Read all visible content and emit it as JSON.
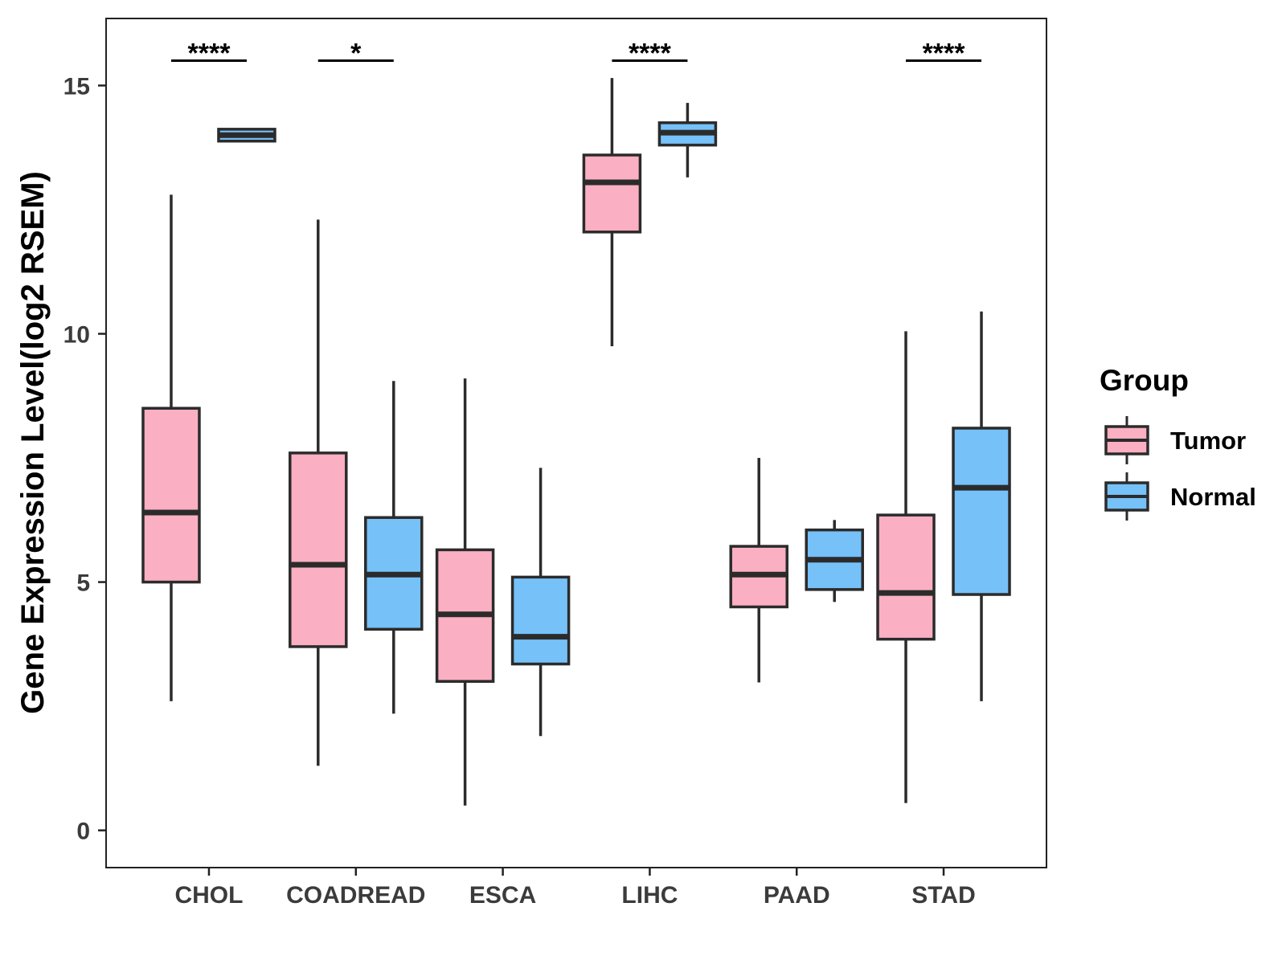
{
  "chart_data": {
    "type": "boxplot",
    "title": "",
    "xlabel": "",
    "ylabel": "Gene Expression Level(log2 RSEM)",
    "ylim": [
      -0.75,
      16.35
    ],
    "yticks": [
      0,
      5,
      10,
      15
    ],
    "ytick_labels": [
      "0",
      "5",
      "10",
      "15"
    ],
    "categories": [
      "CHOL",
      "COADREAD",
      "ESCA",
      "LIHC",
      "PAAD",
      "STAD"
    ],
    "legend": {
      "title": "Group",
      "position": "right",
      "entries": [
        {
          "name": "Tumor",
          "color": "#fbafc2"
        },
        {
          "name": "Normal",
          "color": "#76c1f8"
        }
      ]
    },
    "series": [
      {
        "name": "Tumor",
        "color": "#fbafc2",
        "boxes": [
          {
            "category": "CHOL",
            "whisker_low": 2.6,
            "q1": 5.0,
            "median": 6.4,
            "q3": 8.5,
            "whisker_high": 12.8
          },
          {
            "category": "COADREAD",
            "whisker_low": 1.3,
            "q1": 3.7,
            "median": 5.35,
            "q3": 7.6,
            "whisker_high": 12.3
          },
          {
            "category": "ESCA",
            "whisker_low": 0.5,
            "q1": 3.0,
            "median": 4.35,
            "q3": 5.65,
            "whisker_high": 9.1
          },
          {
            "category": "LIHC",
            "whisker_low": 9.75,
            "q1": 12.05,
            "median": 13.05,
            "q3": 13.6,
            "whisker_high": 15.15
          },
          {
            "category": "PAAD",
            "whisker_low": 2.98,
            "q1": 4.5,
            "median": 5.15,
            "q3": 5.72,
            "whisker_high": 7.5
          },
          {
            "category": "STAD",
            "whisker_low": 0.55,
            "q1": 3.85,
            "median": 4.78,
            "q3": 6.35,
            "whisker_high": 10.05
          }
        ]
      },
      {
        "name": "Normal",
        "color": "#76c1f8",
        "boxes": [
          {
            "category": "CHOL",
            "whisker_low": 13.88,
            "q1": 13.88,
            "median": 14.0,
            "q3": 14.12,
            "whisker_high": 14.12
          },
          {
            "category": "COADREAD",
            "whisker_low": 2.35,
            "q1": 4.05,
            "median": 5.15,
            "q3": 6.3,
            "whisker_high": 9.05
          },
          {
            "category": "ESCA",
            "whisker_low": 1.9,
            "q1": 3.35,
            "median": 3.9,
            "q3": 5.1,
            "whisker_high": 7.3
          },
          {
            "category": "LIHC",
            "whisker_low": 13.15,
            "q1": 13.8,
            "median": 14.05,
            "q3": 14.25,
            "whisker_high": 14.65
          },
          {
            "category": "PAAD",
            "whisker_low": 4.6,
            "q1": 4.85,
            "median": 5.45,
            "q3": 6.05,
            "whisker_high": 6.25
          },
          {
            "category": "STAD",
            "whisker_low": 2.6,
            "q1": 4.75,
            "median": 6.9,
            "q3": 8.1,
            "whisker_high": 10.45
          }
        ]
      }
    ],
    "annotations": [
      {
        "category": "CHOL",
        "label": "****",
        "y": 15.5
      },
      {
        "category": "COADREAD",
        "label": "*",
        "y": 15.5
      },
      {
        "category": "LIHC",
        "label": "****",
        "y": 15.5
      },
      {
        "category": "STAD",
        "label": "****",
        "y": 15.5
      }
    ]
  }
}
